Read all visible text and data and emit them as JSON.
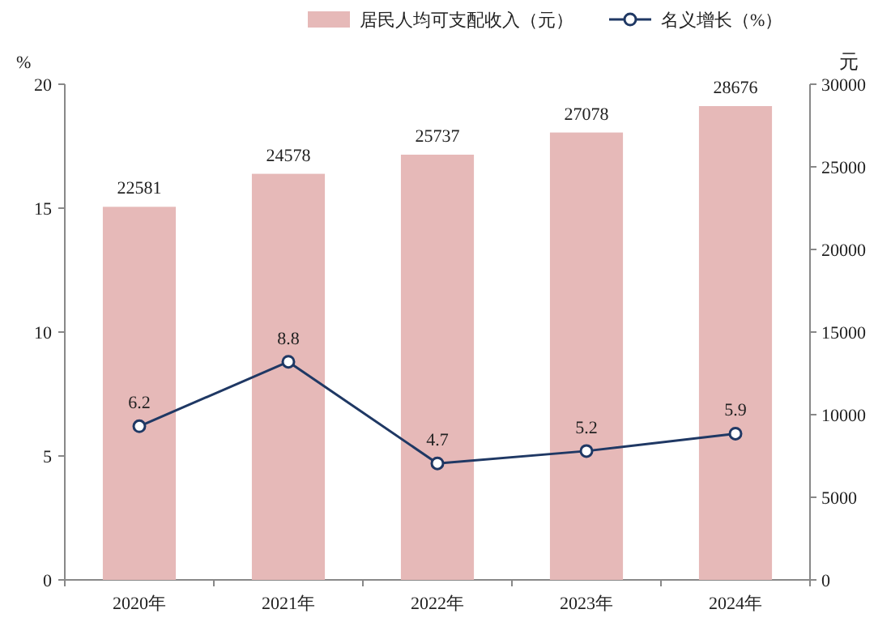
{
  "chart_data": {
    "type": "bar",
    "categories": [
      "2020年",
      "2021年",
      "2022年",
      "2023年",
      "2024年"
    ],
    "series": [
      {
        "name": "居民人均可支配收入（元）",
        "axis": "y2",
        "color": "#e6b9b8",
        "values": [
          22581,
          24578,
          25737,
          27078,
          28676
        ]
      },
      {
        "name": "名义增长（%）",
        "type": "line",
        "color": "#1f3864",
        "values": [
          6.2,
          8.8,
          4.7,
          5.2,
          5.9
        ]
      }
    ],
    "ylabel": "%",
    "y2label": "元",
    "ylim": [
      0,
      20
    ],
    "yticks": [
      0,
      5,
      10,
      15,
      20
    ],
    "y2lim": [
      0,
      30000
    ],
    "y2ticks": [
      0,
      5000,
      10000,
      15000,
      20000,
      25000,
      30000
    ],
    "legend": "top",
    "data_labels": true,
    "marker": "circle",
    "grid": false
  }
}
